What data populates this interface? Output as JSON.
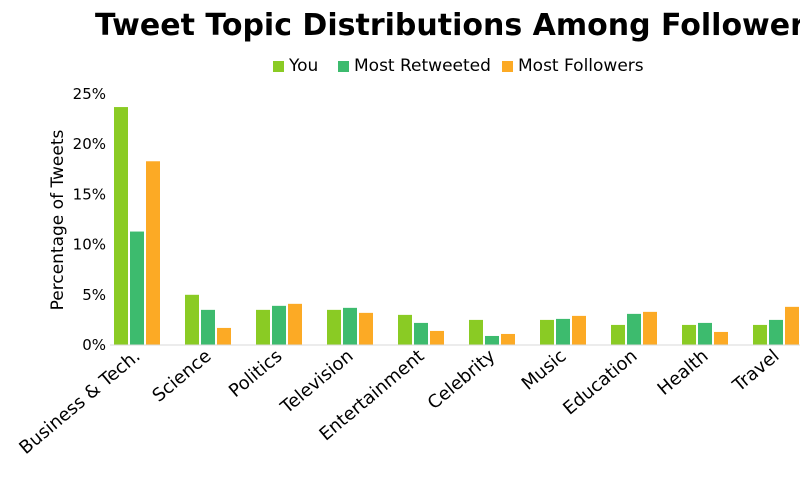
{
  "chart_data": {
    "type": "bar",
    "title": "Tweet Topic Distributions Among Followers",
    "xlabel": "",
    "ylabel": "Percentage of Tweets",
    "ylim": [
      0,
      25
    ],
    "yticks": [
      "0%",
      "5%",
      "10%",
      "15%",
      "20%",
      "25%"
    ],
    "categories": [
      "Business & Tech.",
      "Science",
      "Politics",
      "Television",
      "Entertainment",
      "Celebrity",
      "Music",
      "Education",
      "Health",
      "Travel"
    ],
    "series": [
      {
        "name": "You",
        "color": "#8acb24",
        "values": [
          23.7,
          5.0,
          3.5,
          3.5,
          3.0,
          2.5,
          2.5,
          2.0,
          2.0,
          2.0
        ]
      },
      {
        "name": "Most Retweeted",
        "color": "#3dbb6e",
        "values": [
          11.3,
          3.5,
          3.9,
          3.7,
          2.2,
          0.9,
          2.6,
          3.1,
          2.2,
          2.5
        ]
      },
      {
        "name": "Most Followers",
        "color": "#fcaa25",
        "values": [
          18.3,
          1.7,
          4.1,
          3.2,
          1.4,
          1.1,
          2.9,
          3.3,
          1.3,
          3.8
        ]
      }
    ],
    "grid": false,
    "legend_position": "top-center"
  }
}
